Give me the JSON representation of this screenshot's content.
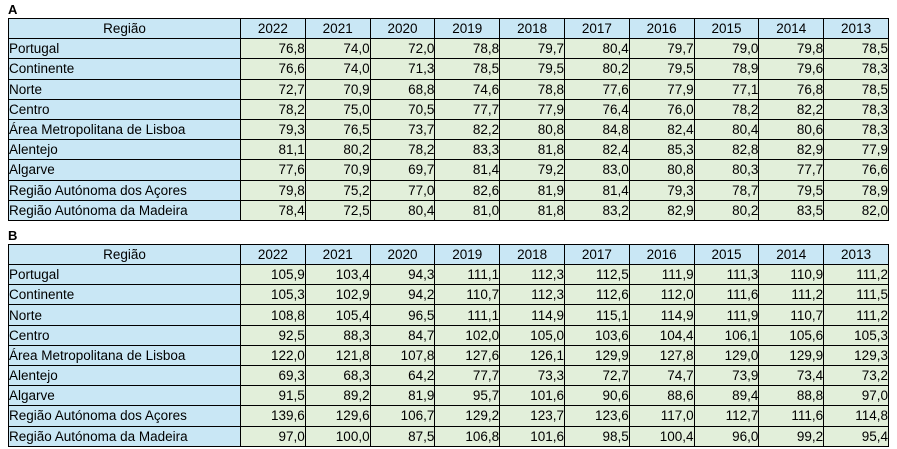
{
  "colors": {
    "header_fill": "#c9e7f5",
    "data_fill": "#e2efda",
    "border": "#000000",
    "text": "#000000",
    "background": "#ffffff"
  },
  "chart_data": [
    {
      "type": "table",
      "label": "A",
      "header_region": "Região",
      "years": [
        "2022",
        "2021",
        "2020",
        "2019",
        "2018",
        "2017",
        "2016",
        "2015",
        "2014",
        "2013"
      ],
      "rows": [
        {
          "region": "Portugal",
          "values": [
            "76,8",
            "74,0",
            "72,0",
            "78,8",
            "79,7",
            "80,4",
            "79,7",
            "79,0",
            "79,8",
            "78,5"
          ]
        },
        {
          "region": "Continente",
          "values": [
            "76,6",
            "74,0",
            "71,3",
            "78,5",
            "79,5",
            "80,2",
            "79,5",
            "78,9",
            "79,6",
            "78,3"
          ]
        },
        {
          "region": "Norte",
          "values": [
            "72,7",
            "70,9",
            "68,8",
            "74,6",
            "78,8",
            "77,6",
            "77,9",
            "77,1",
            "76,8",
            "78,5"
          ]
        },
        {
          "region": "Centro",
          "values": [
            "78,2",
            "75,0",
            "70,5",
            "77,7",
            "77,9",
            "76,4",
            "76,0",
            "78,2",
            "82,2",
            "78,3"
          ]
        },
        {
          "region": "Área Metropolitana de Lisboa",
          "values": [
            "79,3",
            "76,5",
            "73,7",
            "82,2",
            "80,8",
            "84,8",
            "82,4",
            "80,4",
            "80,6",
            "78,3"
          ]
        },
        {
          "region": "Alentejo",
          "values": [
            "81,1",
            "80,2",
            "78,2",
            "83,3",
            "81,8",
            "82,4",
            "85,3",
            "82,8",
            "82,9",
            "77,9"
          ]
        },
        {
          "region": "Algarve",
          "values": [
            "77,6",
            "70,9",
            "69,7",
            "81,4",
            "79,2",
            "83,0",
            "80,8",
            "80,3",
            "77,7",
            "76,6"
          ]
        },
        {
          "region": "Região Autónoma dos Açores",
          "values": [
            "79,8",
            "75,2",
            "77,0",
            "82,6",
            "81,9",
            "81,4",
            "79,3",
            "78,7",
            "79,5",
            "78,9"
          ]
        },
        {
          "region": "Região Autónoma da Madeira",
          "values": [
            "78,4",
            "72,5",
            "80,4",
            "81,0",
            "81,8",
            "83,2",
            "82,9",
            "80,2",
            "83,5",
            "82,0"
          ]
        }
      ]
    },
    {
      "type": "table",
      "label": "B",
      "header_region": "Região",
      "years": [
        "2022",
        "2021",
        "2020",
        "2019",
        "2018",
        "2017",
        "2016",
        "2015",
        "2014",
        "2013"
      ],
      "rows": [
        {
          "region": "Portugal",
          "values": [
            "105,9",
            "103,4",
            "94,3",
            "111,1",
            "112,3",
            "112,5",
            "111,9",
            "111,3",
            "110,9",
            "111,2"
          ]
        },
        {
          "region": "Continente",
          "values": [
            "105,3",
            "102,9",
            "94,2",
            "110,7",
            "112,3",
            "112,6",
            "112,0",
            "111,6",
            "111,2",
            "111,5"
          ]
        },
        {
          "region": "Norte",
          "values": [
            "108,8",
            "105,4",
            "96,5",
            "111,1",
            "114,9",
            "115,1",
            "114,9",
            "111,9",
            "110,7",
            "111,2"
          ]
        },
        {
          "region": "Centro",
          "values": [
            "92,5",
            "88,3",
            "84,7",
            "102,0",
            "105,0",
            "103,6",
            "104,4",
            "106,1",
            "105,6",
            "105,3"
          ]
        },
        {
          "region": "Área Metropolitana de Lisboa",
          "values": [
            "122,0",
            "121,8",
            "107,8",
            "127,6",
            "126,1",
            "129,9",
            "127,8",
            "129,0",
            "129,9",
            "129,3"
          ]
        },
        {
          "region": "Alentejo",
          "values": [
            "69,3",
            "68,3",
            "64,2",
            "77,7",
            "73,3",
            "72,7",
            "74,7",
            "73,9",
            "73,4",
            "73,2"
          ]
        },
        {
          "region": "Algarve",
          "values": [
            "91,5",
            "89,2",
            "81,9",
            "95,7",
            "101,6",
            "90,6",
            "88,6",
            "89,4",
            "88,8",
            "97,0"
          ]
        },
        {
          "region": "Região Autónoma dos Açores",
          "values": [
            "139,6",
            "129,6",
            "106,7",
            "129,2",
            "123,7",
            "123,6",
            "117,0",
            "112,7",
            "111,6",
            "114,8"
          ]
        },
        {
          "region": "Região Autónoma da Madeira",
          "values": [
            "97,0",
            "100,0",
            "87,5",
            "106,8",
            "101,6",
            "98,5",
            "100,4",
            "96,0",
            "99,2",
            "95,4"
          ]
        }
      ]
    }
  ]
}
